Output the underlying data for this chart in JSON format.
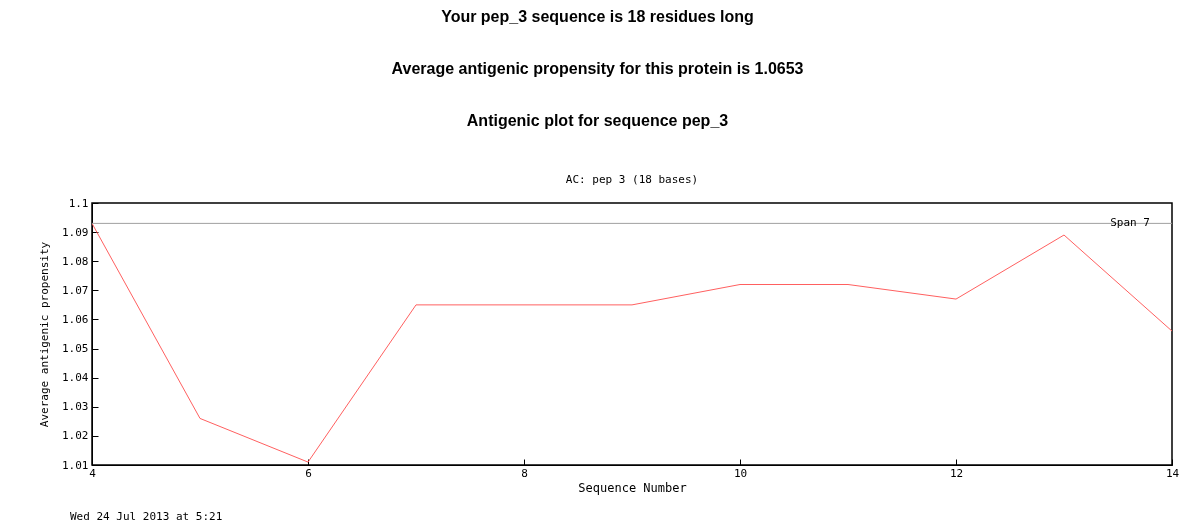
{
  "chart_data": {
    "type": "line",
    "title": "Your pep_3 sequence is 18 residues long",
    "subtitle": "Average antigenic propensity for this protein is 1.0653",
    "annotations": [
      "Antigenic plot for sequence pep_3",
      "AC: pep 3 (18 bases)",
      "Wed 24 Jul 2013 at 5:21"
    ],
    "xlabel": "Sequence Number",
    "ylabel": "Average antigenic propensity",
    "x": [
      4,
      5,
      6,
      7,
      8,
      9,
      10,
      11,
      12,
      13,
      14
    ],
    "series": [
      {
        "color": "#ff6060",
        "values": [
          1.093,
          1.026,
          1.011,
          1.065,
          1.065,
          1.065,
          1.072,
          1.072,
          1.067,
          1.089,
          1.056
        ]
      }
    ],
    "xlim": [
      4,
      14
    ],
    "xticks": [
      4,
      6,
      8,
      10,
      12,
      14
    ],
    "ylim": [
      1.01,
      1.1
    ],
    "yticks": [
      1.01,
      1.02,
      1.03,
      1.04,
      1.05,
      1.06,
      1.07,
      1.08,
      1.09,
      1.1
    ],
    "ref_lines": [
      {
        "axis": "y",
        "value": 1.093,
        "label": "Span 7",
        "color": "#a0a0a0"
      }
    ],
    "grid": false,
    "marker": "none",
    "line_style": "solid"
  }
}
